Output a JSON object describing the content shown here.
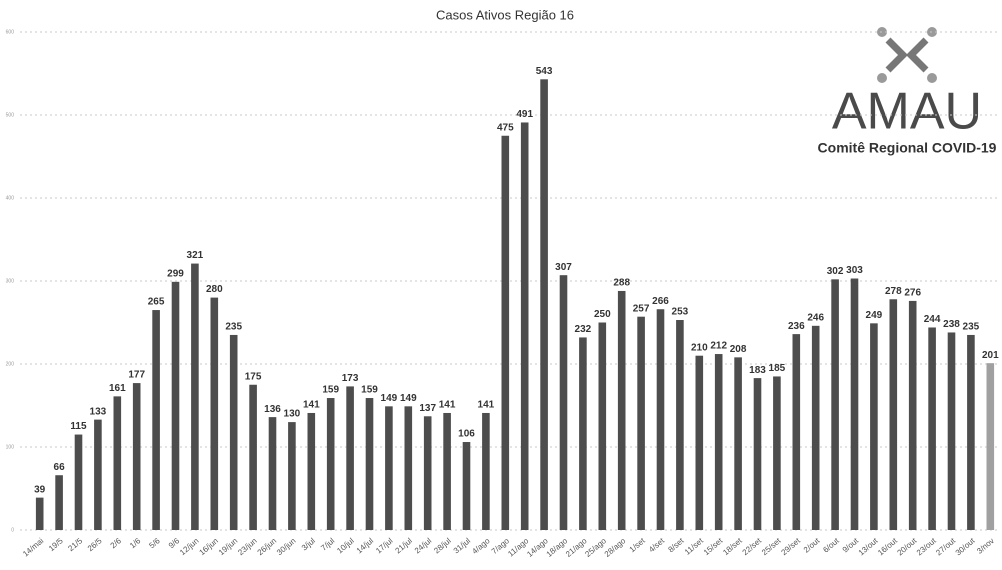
{
  "chart_data": {
    "type": "bar",
    "title": "Casos Ativos Região 16",
    "categories": [
      "14/mai",
      "19/5",
      "21/5",
      "26/5",
      "2/6",
      "1/6",
      "5/6",
      "9/6",
      "12/jun",
      "16/jun",
      "19/jun",
      "23/jun",
      "26/jun",
      "30/jun",
      "3/jul",
      "7/jul",
      "10/jul",
      "14/jul",
      "17/jul",
      "21/jul",
      "24/jul",
      "28/jul",
      "31/jul",
      "4/ago",
      "7/ago",
      "11/ago",
      "14/ago",
      "18/ago",
      "21/ago",
      "25/ago",
      "28/ago",
      "1/set",
      "4/set",
      "8/set",
      "11/set",
      "15/set",
      "18/set",
      "22/set",
      "25/set",
      "29/set",
      "2/out",
      "6/out",
      "9/out",
      "13/out",
      "16/out",
      "20/out",
      "23/out",
      "27/out",
      "30/out",
      "3/nov"
    ],
    "values": [
      39,
      66,
      115,
      133,
      161,
      177,
      265,
      299,
      321,
      280,
      235,
      175,
      136,
      130,
      141,
      159,
      173,
      159,
      149,
      149,
      137,
      141,
      106,
      141,
      475,
      491,
      543,
      307,
      232,
      250,
      288,
      257,
      266,
      253,
      210,
      212,
      208,
      183,
      185,
      236,
      246,
      302,
      303,
      249,
      278,
      276,
      244,
      238,
      235,
      201
    ],
    "color": "#4d4d4d",
    "last_bar_color": "#a0a0a0",
    "ylim": [
      0,
      600
    ],
    "yticks": [
      0,
      100,
      200,
      300,
      400,
      500,
      600
    ],
    "grid": true
  },
  "logo": {
    "name": "AMAU",
    "subtitle": "Comitê Regional COVID-19"
  }
}
